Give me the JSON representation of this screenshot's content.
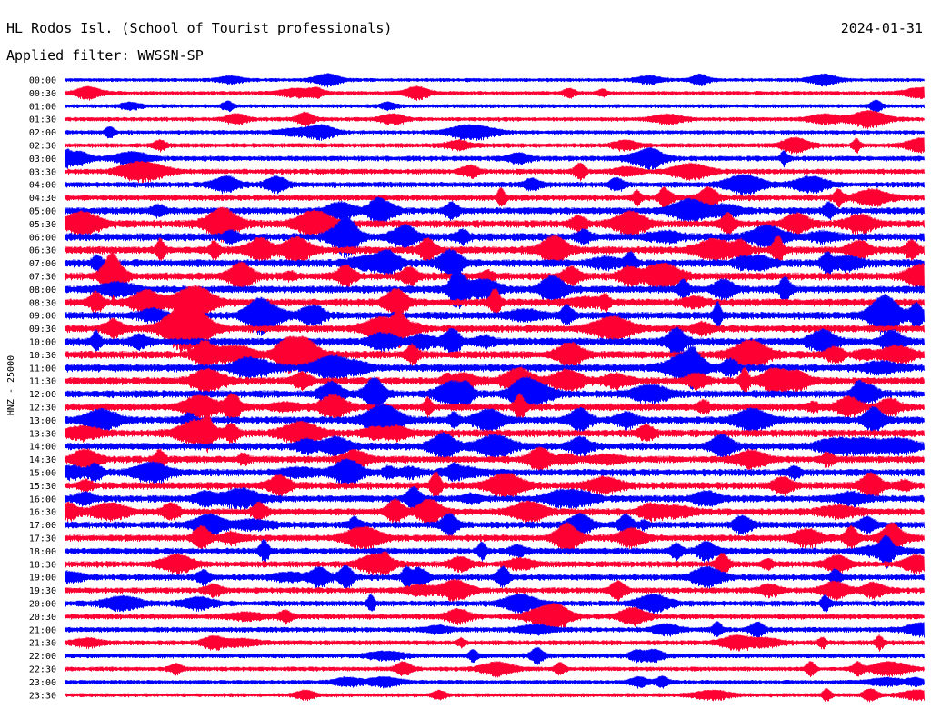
{
  "chart_data": {
    "type": "line",
    "title": "HL Rodos Isl. (School of Tourist professionals)",
    "subtitle": "Applied filter: WWSSN-SP",
    "date": "2024-01-31",
    "ylabel": "HNZ - 25000",
    "grid": false,
    "series_colors": [
      "#0000ff",
      "#ff0033"
    ],
    "rows": [
      "00:00",
      "00:30",
      "01:00",
      "01:30",
      "02:00",
      "02:30",
      "03:00",
      "03:30",
      "04:00",
      "04:30",
      "05:00",
      "05:30",
      "06:00",
      "06:30",
      "07:00",
      "07:30",
      "08:00",
      "08:30",
      "09:00",
      "09:30",
      "10:00",
      "10:30",
      "11:00",
      "11:30",
      "12:00",
      "12:30",
      "13:00",
      "13:30",
      "14:00",
      "14:30",
      "15:00",
      "15:30",
      "16:00",
      "16:30",
      "17:00",
      "17:30",
      "18:00",
      "18:30",
      "19:00",
      "19:30",
      "20:00",
      "20:30",
      "21:00",
      "21:30",
      "22:00",
      "22:30",
      "23:00",
      "23:30"
    ],
    "row_noise_level": [
      0.25,
      0.3,
      0.3,
      0.35,
      0.35,
      0.45,
      0.55,
      0.6,
      0.65,
      0.7,
      0.9,
      1.0,
      1.05,
      1.05,
      1.05,
      1.0,
      1.0,
      1.0,
      1.0,
      1.0,
      1.05,
      1.05,
      1.05,
      1.0,
      1.0,
      1.0,
      1.0,
      1.0,
      0.95,
      0.95,
      0.95,
      0.95,
      0.9,
      0.9,
      0.85,
      0.85,
      0.8,
      0.75,
      0.75,
      0.7,
      0.65,
      0.6,
      0.55,
      0.5,
      0.45,
      0.4,
      0.35,
      0.3
    ]
  }
}
